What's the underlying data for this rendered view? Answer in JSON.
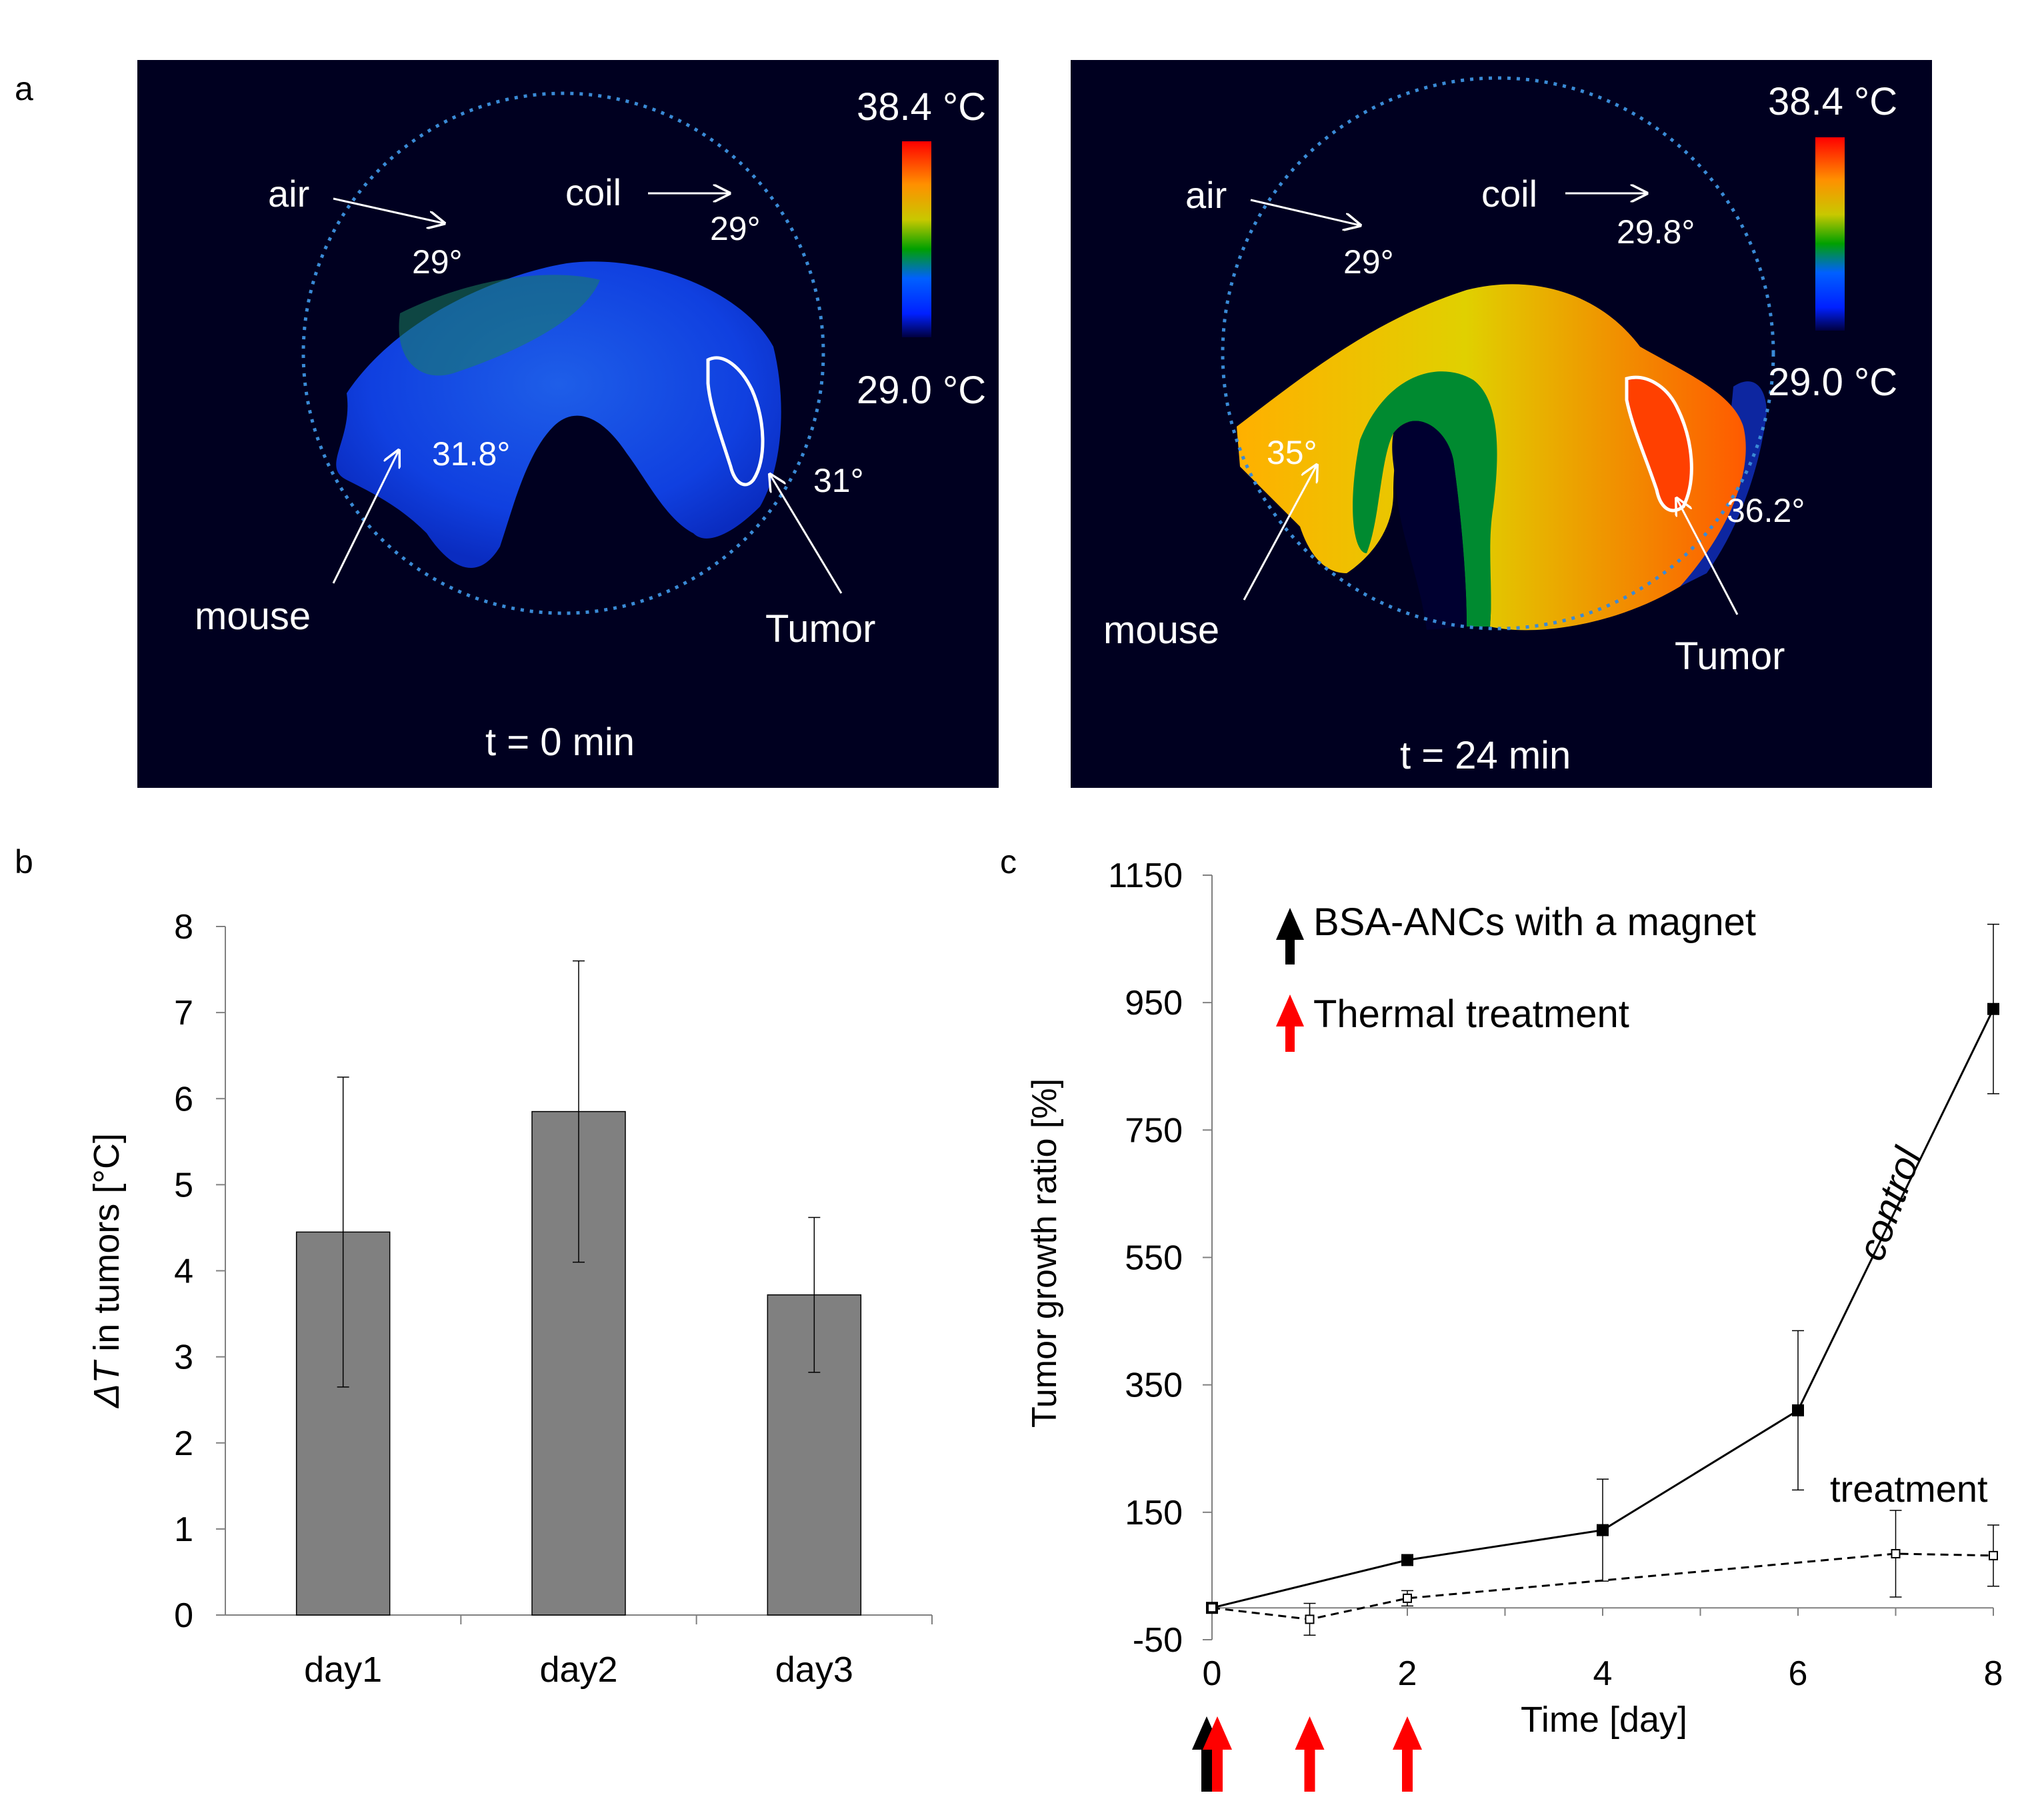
{
  "figure": {
    "panel_a": {
      "label": "a",
      "colorbar_max": "38.4 °C",
      "colorbar_min": "29.0 °C",
      "left_image": {
        "time": "t = 0 min",
        "air_label": "air",
        "air_temp": "29°",
        "coil_label": "coil",
        "coil_temp": "29°",
        "mouse_label": "mouse",
        "mouse_temp": "31.8°",
        "tumor_label": "Tumor",
        "tumor_temp": "31°"
      },
      "right_image": {
        "time": "t = 24 min",
        "air_label": "air",
        "air_temp": "29°",
        "coil_label": "coil",
        "coil_temp": "29.8°",
        "mouse_label": "mouse",
        "mouse_temp": "35°",
        "tumor_label": "Tumor",
        "tumor_temp": "36.2°"
      }
    },
    "panel_b": {
      "label": "b"
    },
    "panel_c": {
      "label": "c",
      "legend_black": "BSA-ANCs  with a magnet",
      "legend_red": "Thermal treatment",
      "control_label": "control",
      "treatment_label": "treatment"
    }
  },
  "colors": {
    "bar": "#808080",
    "red_arrow": "#ff0000",
    "thermal_bg": "#000020",
    "dotted_circle": "#3a8ad6"
  },
  "chart_data": [
    {
      "type": "bar",
      "panel": "b",
      "title": "",
      "categories": [
        "day1",
        "day2",
        "day3"
      ],
      "values": [
        4.45,
        5.85,
        3.72
      ],
      "errors": [
        1.8,
        1.75,
        0.9
      ],
      "xlabel": "",
      "ylabel_italic": "ΔT",
      "ylabel_rest": " in tumors [°C]",
      "ylim": [
        0,
        8
      ],
      "yticks": [
        0,
        1,
        2,
        3,
        4,
        5,
        6,
        7,
        8
      ]
    },
    {
      "type": "line",
      "panel": "c",
      "title": "",
      "xlabel": "Time [day]",
      "ylabel": "Tumor growth ratio [%]",
      "xlim": [
        0,
        8
      ],
      "ylim": [
        -50,
        1150
      ],
      "xticks": [
        0,
        2,
        4,
        6,
        8
      ],
      "yticks": [
        -50,
        150,
        350,
        550,
        750,
        950,
        1150
      ],
      "series": [
        {
          "name": "control",
          "style": "solid",
          "marker": "filled-square",
          "x": [
            0,
            2,
            4,
            6,
            8
          ],
          "y": [
            0,
            75,
            122,
            310,
            940
          ],
          "err": [
            0,
            0,
            80,
            125,
            133
          ]
        },
        {
          "name": "treatment",
          "style": "dashed",
          "marker": "open-square",
          "x": [
            0,
            1,
            2,
            7,
            8
          ],
          "y": [
            0,
            -18,
            15,
            85,
            82
          ],
          "err": [
            0,
            25,
            12,
            68,
            48
          ]
        }
      ],
      "black_arrow_days": [
        0
      ],
      "red_arrow_days": [
        0,
        1,
        2
      ]
    }
  ]
}
